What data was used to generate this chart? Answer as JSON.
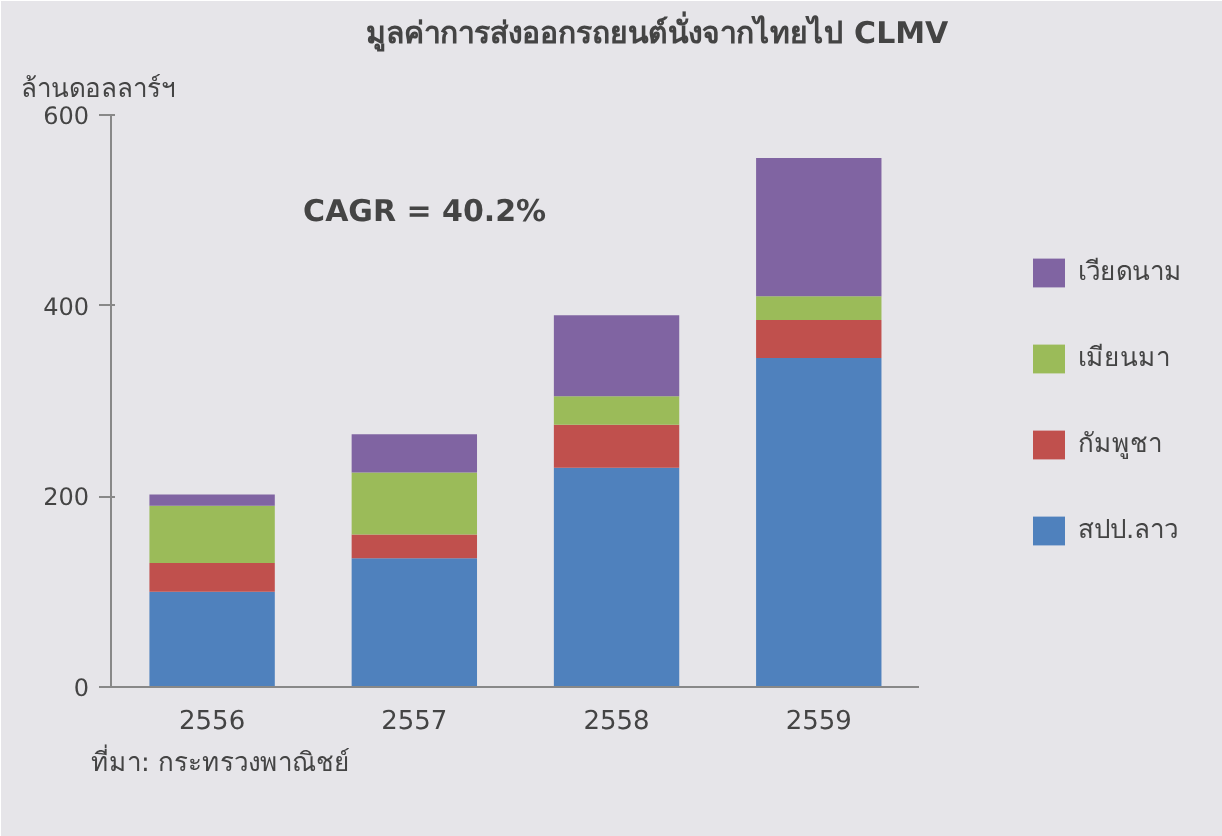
{
  "chart_data": {
    "type": "bar",
    "stacked": true,
    "title": "มูลค่าการส่งออกรถยนต์นั่งจากไทยไป CLMV",
    "ylabel": "ล้านดอลลาร์ฯ",
    "categories": [
      "2556",
      "2557",
      "2558",
      "2559"
    ],
    "series": [
      {
        "name": "สปป.ลาว",
        "color": "#4f81bd",
        "values": [
          100,
          135,
          230,
          345
        ]
      },
      {
        "name": "กัมพูชา",
        "color": "#c0504d",
        "values": [
          30,
          25,
          45,
          40
        ]
      },
      {
        "name": "เมียนมา",
        "color": "#9bbb59",
        "values": [
          60,
          65,
          30,
          25
        ]
      },
      {
        "name": "เวียดนาม",
        "color": "#8064a2",
        "values": [
          12,
          40,
          85,
          145
        ]
      }
    ],
    "ylim": [
      0,
      600
    ],
    "yticks": [
      0,
      200,
      400,
      600
    ],
    "legend": "right",
    "annotations": [
      "CAGR = 40.2%",
      "ที่มา: กระทรวงพาณิชย์"
    ]
  }
}
